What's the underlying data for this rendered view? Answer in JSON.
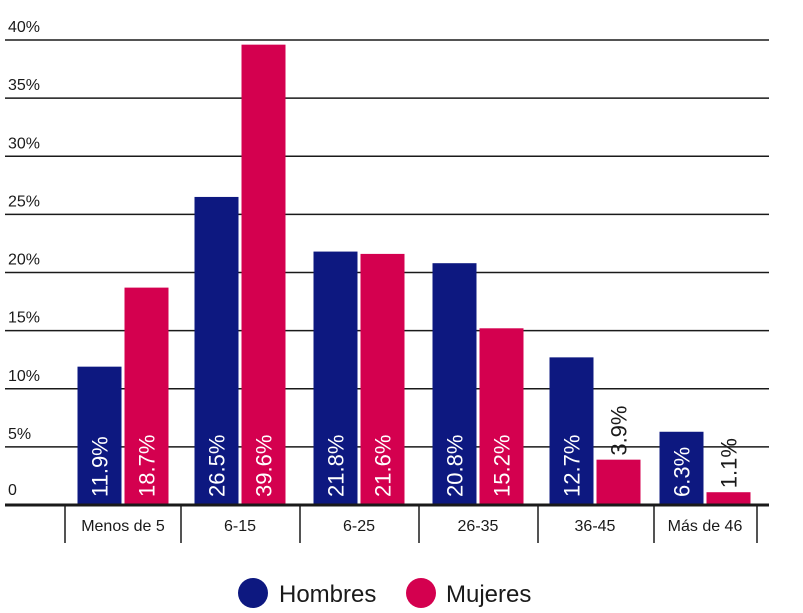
{
  "chart_data": {
    "type": "bar",
    "categories": [
      "Menos de 5",
      "6-15",
      "6-25",
      "26-35",
      "36-45",
      "Más de 46"
    ],
    "series": [
      {
        "name": "Hombres",
        "values": [
          11.9,
          26.5,
          21.8,
          20.8,
          12.7,
          6.3
        ],
        "labels": [
          "11.9%",
          "26.5%",
          "21.8%",
          "20.8%",
          "12.7%",
          "6.3%"
        ]
      },
      {
        "name": "Mujeres",
        "values": [
          18.7,
          39.6,
          21.6,
          15.2,
          3.9,
          1.1
        ],
        "labels": [
          "18.7%",
          "39.6%",
          "21.6%",
          "15.2%",
          "3.9%",
          "1.1%"
        ]
      }
    ],
    "y_ticks": [
      0,
      5,
      10,
      15,
      20,
      25,
      30,
      35,
      40
    ],
    "y_tick_labels": [
      "0",
      "5%",
      "10%",
      "15%",
      "20%",
      "25%",
      "30%",
      "35%",
      "40%"
    ],
    "ylim": [
      0,
      40
    ],
    "grid": true,
    "legend_position": "bottom-center",
    "colors": {
      "Hombres": "#0d1880",
      "Mujeres": "#d4004f",
      "grid": "#1a1a1a",
      "text": "#1a1a1a"
    }
  }
}
